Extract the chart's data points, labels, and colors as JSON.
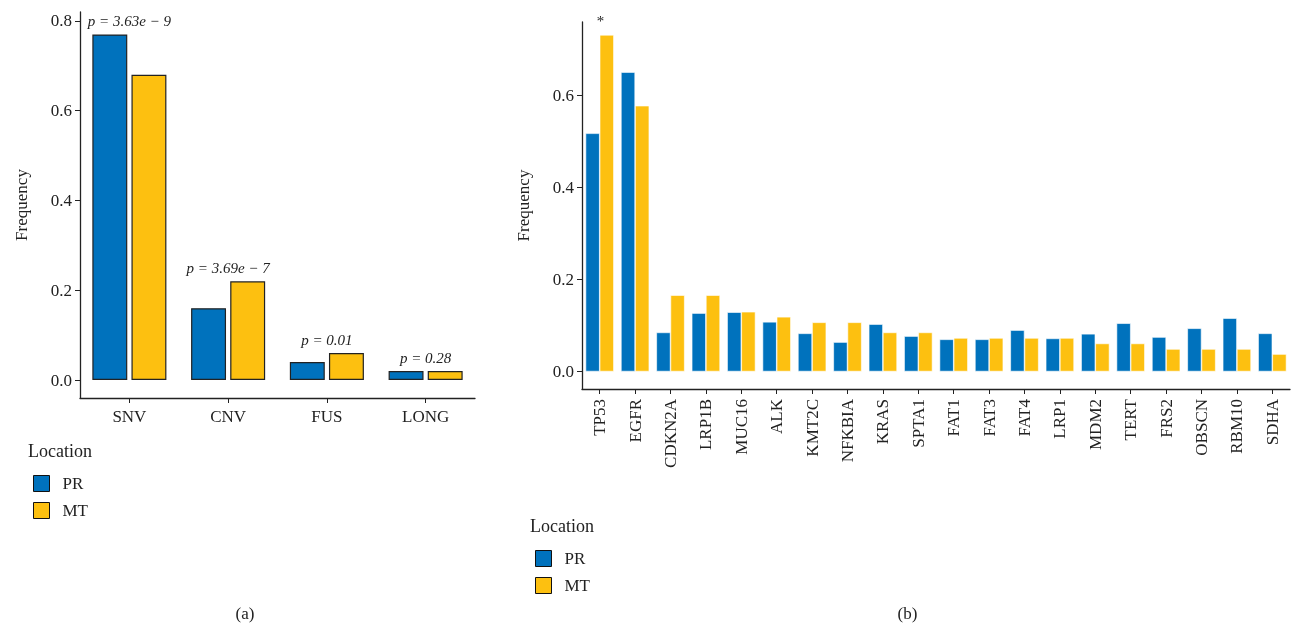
{
  "chart_data": [
    {
      "type": "bar",
      "ylabel": "Frequency",
      "legend_title": "Location",
      "legend": "bottom left",
      "grid": false,
      "categories": [
        "SNV",
        "CNV",
        "FUS",
        "LONG"
      ],
      "series": [
        {
          "name": "PR",
          "color": "#0072bd",
          "values": [
            0.77,
            0.16,
            0.04,
            0.02
          ]
        },
        {
          "name": "MT",
          "color": "#fdc010",
          "values": [
            0.68,
            0.22,
            0.06,
            0.02
          ]
        }
      ],
      "ylim": [
        -0.04,
        0.82
      ],
      "yticks": [
        {
          "value": 0,
          "label": "0.0"
        },
        0.2,
        0.4,
        0.6,
        0.8
      ],
      "annotations": [
        "p = 3.63e − 9",
        "p = 3.69e − 7",
        "p = 0.01",
        "p = 0.28",
        "(a)"
      ]
    },
    {
      "type": "bar",
      "ylabel": "Frequency",
      "legend_title": "Location",
      "legend": "bottom left",
      "grid": false,
      "categories": [
        "TP53",
        "EGFR",
        "CDKN2A",
        "LRP1B",
        "MUC16",
        "ALK",
        "KMT2C",
        "NFKBIA",
        "KRAS",
        "SPTA1",
        "FAT1",
        "FAT3",
        "FAT4",
        "LRP1",
        "MDM2",
        "TERT",
        "FRS2",
        "OBSCN",
        "RBM10",
        "SDHA"
      ],
      "series": [
        {
          "name": "PR",
          "color": "#0072bd",
          "values": [
            0.518,
            0.651,
            0.085,
            0.127,
            0.129,
            0.108,
            0.083,
            0.064,
            0.103,
            0.077,
            0.07,
            0.07,
            0.09,
            0.072,
            0.082,
            0.105,
            0.075,
            0.094,
            0.116,
            0.083
          ]
        },
        {
          "name": "MT",
          "color": "#fdc010",
          "values": [
            0.732,
            0.578,
            0.166,
            0.166,
            0.13,
            0.119,
            0.107,
            0.107,
            0.085,
            0.085,
            0.073,
            0.073,
            0.073,
            0.073,
            0.061,
            0.061,
            0.049,
            0.049,
            0.049,
            0.038
          ]
        }
      ],
      "ylim": [
        -0.038,
        0.76
      ],
      "yticks": [
        {
          "value": 0,
          "label": "0.0"
        },
        0.2,
        0.4,
        0.6
      ],
      "annotations": [
        "*",
        "(b)"
      ]
    }
  ]
}
